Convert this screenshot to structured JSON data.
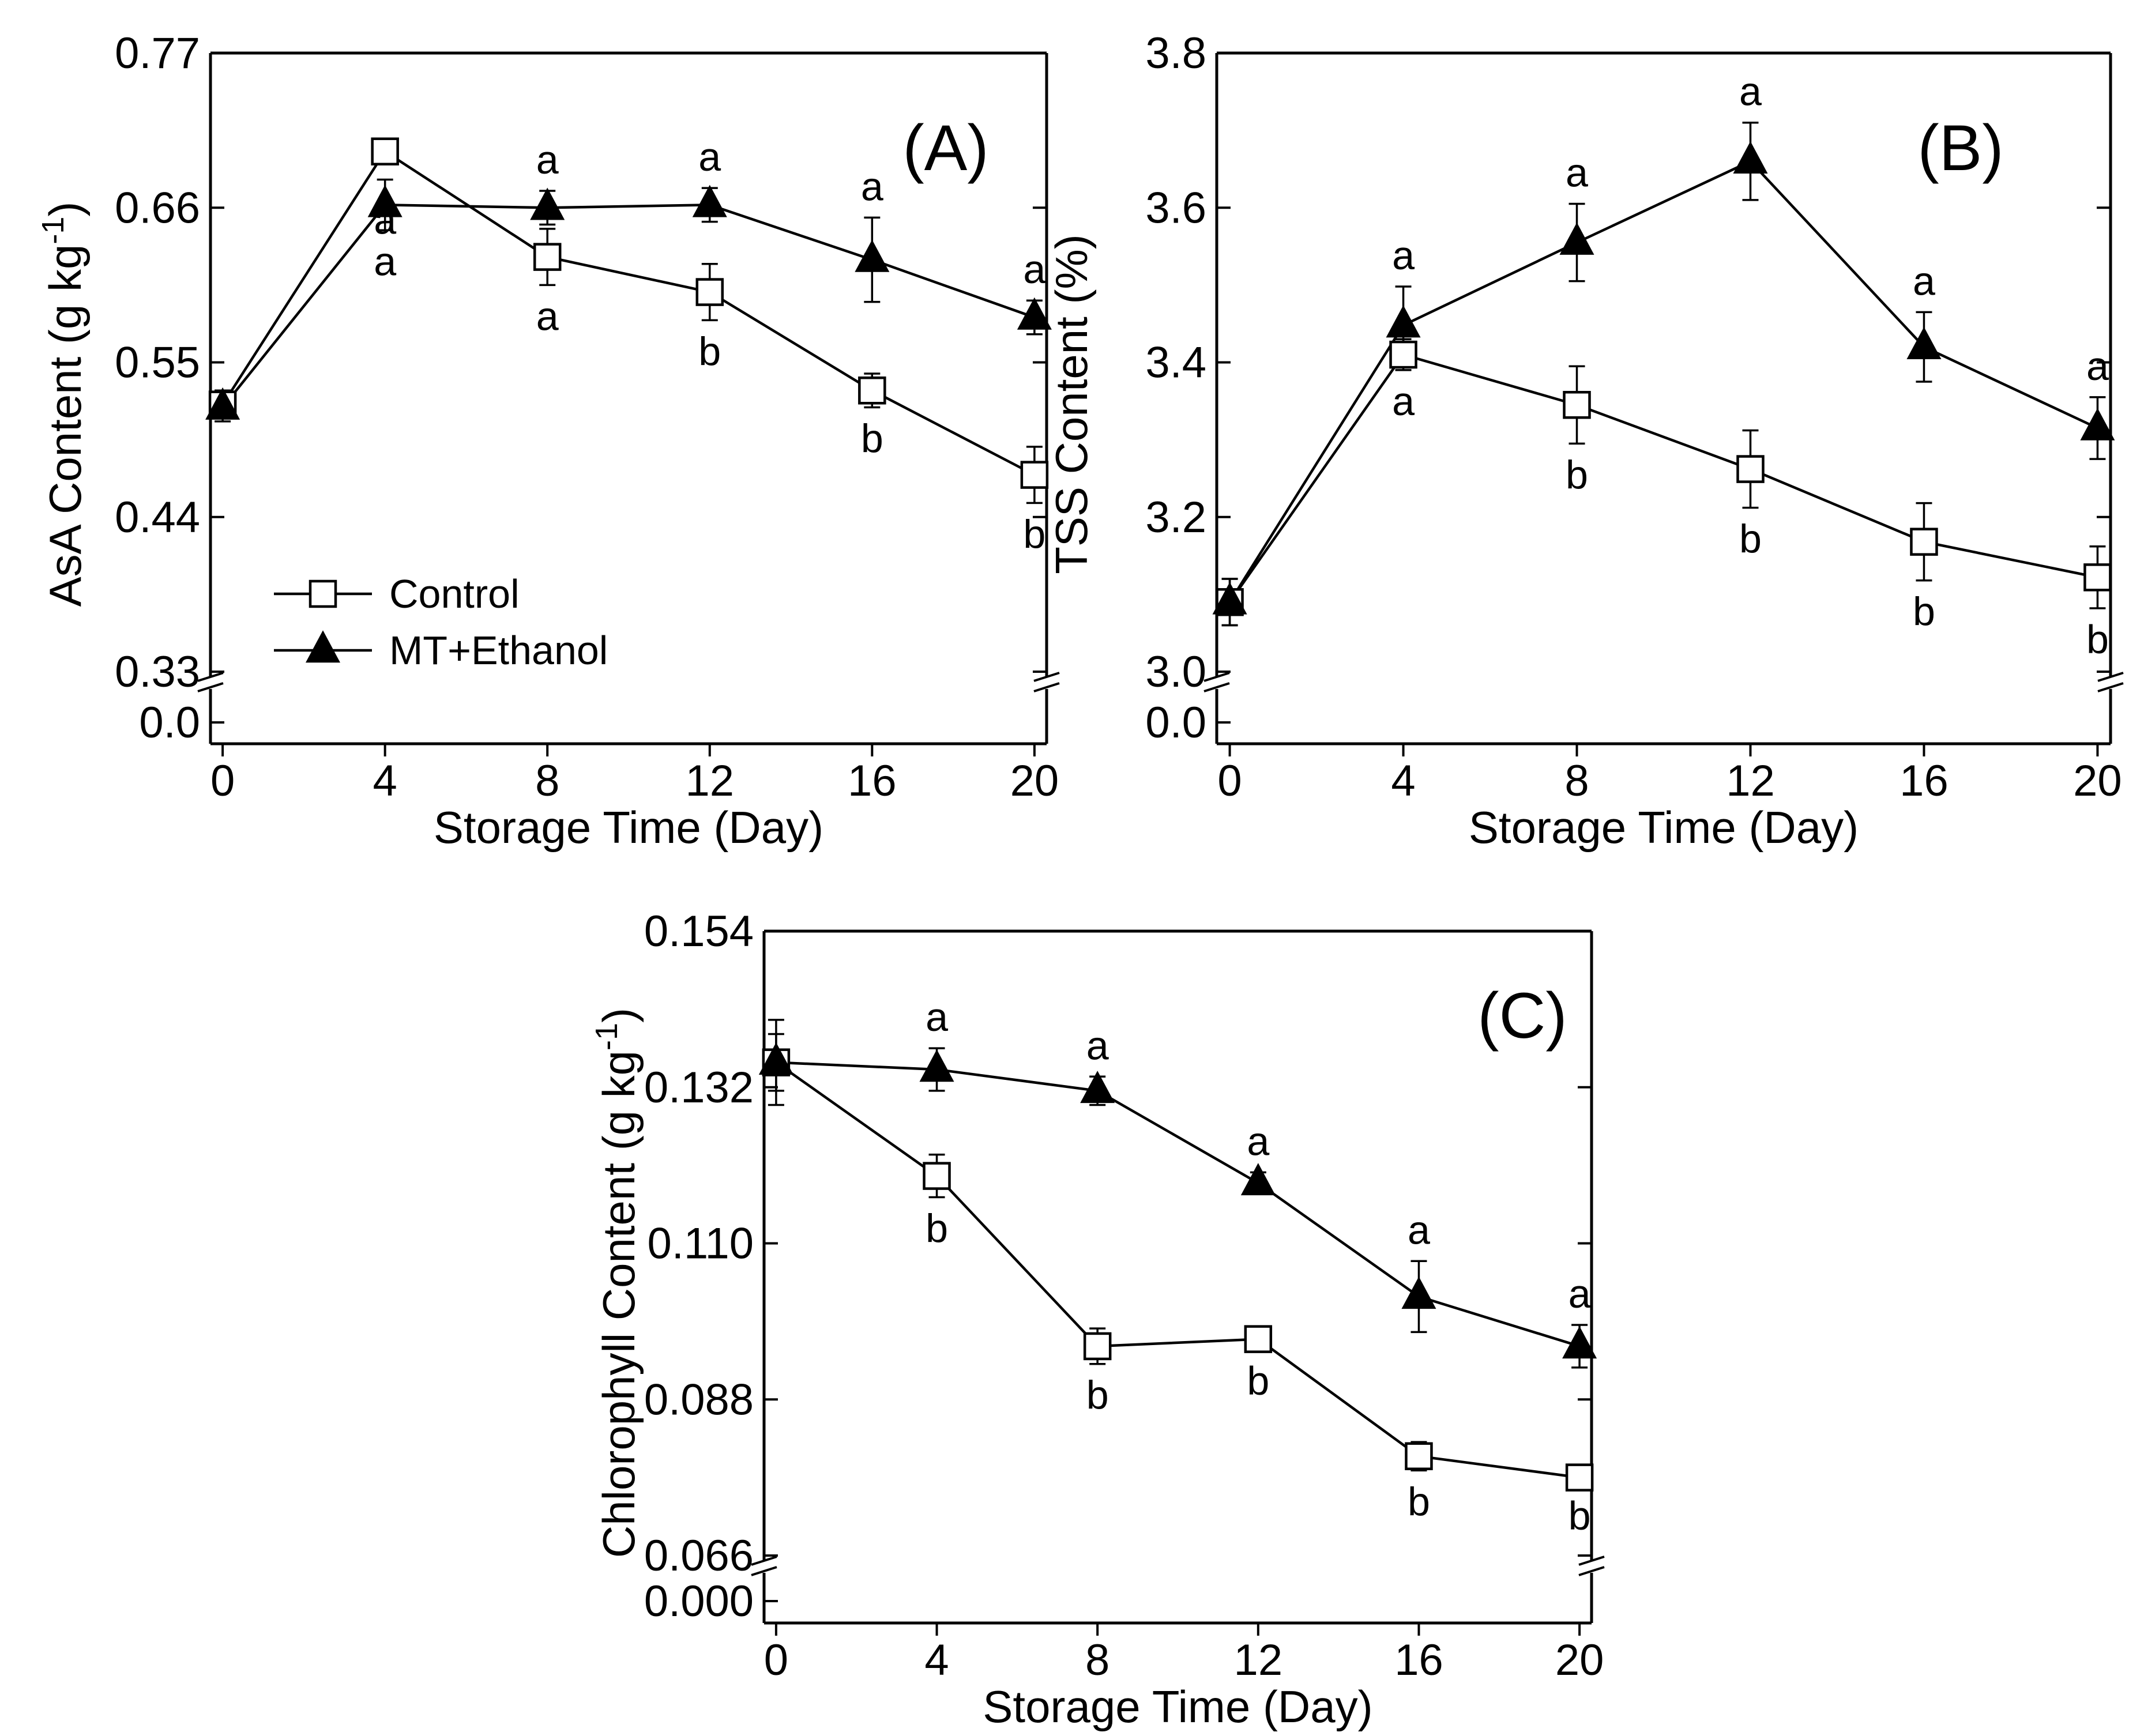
{
  "figure": {
    "background": "#ffffff",
    "ink": "#000000"
  },
  "legend": [
    {
      "name": "Control",
      "marker": "open-square"
    },
    {
      "name": "MT+Ethanol",
      "marker": "filled-triangle"
    }
  ],
  "chart_data": [
    {
      "id": "A",
      "type": "line",
      "panel_label": "(A)",
      "xlabel": "Storage Time (Day)",
      "ylabel": "AsA Content (g kg",
      "ylabel_sup": "-1",
      "ylabel_close": ")",
      "x": [
        0,
        4,
        8,
        12,
        16,
        20
      ],
      "xticks": [
        "0",
        "4",
        "8",
        "12",
        "16",
        "20"
      ],
      "xlim": [
        -0.3,
        20.3
      ],
      "ylim": [
        0.33,
        0.77
      ],
      "yticks": [
        "0.33",
        "0.44",
        "0.55",
        "0.66",
        "0.77"
      ],
      "ybreak_label": "0.0",
      "legend_position": "lower-left",
      "series": [
        {
          "name": "Control",
          "marker": "open-square",
          "values": [
            0.52,
            0.7,
            0.625,
            0.6,
            0.53,
            0.47
          ],
          "errors": [
            0.01,
            0.008,
            0.02,
            0.02,
            0.012,
            0.02
          ],
          "letters": [
            "",
            "",
            "a",
            "b",
            "b",
            "b"
          ]
        },
        {
          "name": "MT+Ethanol",
          "marker": "filled-triangle",
          "values": [
            0.518,
            0.662,
            0.66,
            0.662,
            0.623,
            0.582
          ],
          "errors": [
            0.01,
            0.018,
            0.012,
            0.012,
            0.03,
            0.012
          ],
          "letters": [
            "",
            "a",
            "a",
            "a",
            "a",
            "a"
          ]
        }
      ],
      "extra_letters": [
        {
          "x": 4,
          "y": 0.625,
          "text": "a"
        }
      ]
    },
    {
      "id": "B",
      "type": "line",
      "panel_label": "(B)",
      "xlabel": "Storage Time (Day)",
      "ylabel": "TSS Content (%)",
      "ylabel_sup": "",
      "ylabel_close": "",
      "x": [
        0,
        4,
        8,
        12,
        16,
        20
      ],
      "xticks": [
        "0",
        "4",
        "8",
        "12",
        "16",
        "20"
      ],
      "xlim": [
        -0.3,
        20.3
      ],
      "ylim": [
        3.0,
        3.8
      ],
      "yticks": [
        "3.0",
        "3.2",
        "3.4",
        "3.6",
        "3.8"
      ],
      "ybreak_label": "0.0",
      "legend_position": "none",
      "series": [
        {
          "name": "Control",
          "marker": "open-square",
          "values": [
            3.09,
            3.41,
            3.345,
            3.262,
            3.168,
            3.122
          ],
          "errors": [
            0.03,
            0.02,
            0.05,
            0.05,
            0.05,
            0.04
          ],
          "letters": [
            "",
            "a",
            "b",
            "b",
            "b",
            "b"
          ]
        },
        {
          "name": "MT+Ethanol",
          "marker": "filled-triangle",
          "values": [
            3.09,
            3.448,
            3.555,
            3.66,
            3.42,
            3.315
          ],
          "errors": [
            0.03,
            0.05,
            0.05,
            0.05,
            0.045,
            0.04
          ],
          "letters": [
            "",
            "a",
            "a",
            "a",
            "a",
            "a"
          ]
        }
      ],
      "extra_letters": []
    },
    {
      "id": "C",
      "type": "line",
      "panel_label": "(C)",
      "xlabel": "Storage Time (Day)",
      "ylabel": "Chlorophyll Content (g kg",
      "ylabel_sup": "-1",
      "ylabel_close": ")",
      "x": [
        0,
        4,
        8,
        12,
        16,
        20
      ],
      "xticks": [
        "0",
        "4",
        "8",
        "12",
        "16",
        "20"
      ],
      "xlim": [
        -0.3,
        20.3
      ],
      "ylim": [
        0.066,
        0.154
      ],
      "yticks": [
        "0.066",
        "0.088",
        "0.110",
        "0.132",
        "0.154"
      ],
      "ybreak_label": "0.000",
      "legend_position": "none",
      "series": [
        {
          "name": "Control",
          "marker": "open-square",
          "values": [
            0.1355,
            0.1195,
            0.0955,
            0.0965,
            0.08,
            0.077
          ],
          "errors": [
            0.004,
            0.003,
            0.0025,
            0.0015,
            0.002,
            0.001
          ],
          "letters": [
            "",
            "b",
            "b",
            "b",
            "b",
            "b"
          ]
        },
        {
          "name": "MT+Ethanol",
          "marker": "filled-triangle",
          "values": [
            0.1355,
            0.1345,
            0.1315,
            0.1185,
            0.1025,
            0.0955
          ],
          "errors": [
            0.006,
            0.003,
            0.002,
            0.0015,
            0.005,
            0.003
          ],
          "letters": [
            "",
            "a",
            "a",
            "a",
            "a",
            "a"
          ]
        }
      ],
      "extra_letters": []
    }
  ]
}
